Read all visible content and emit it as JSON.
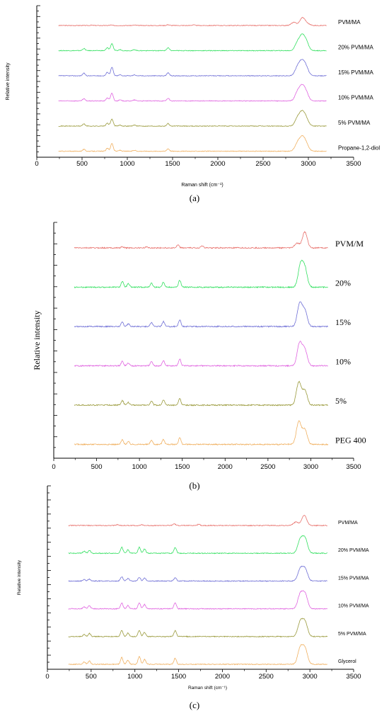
{
  "chart_data": [
    {
      "type": "line",
      "panel_label": "(a)",
      "xlabel": "Raman shift (cm⁻¹)",
      "ylabel": "Relative intensity",
      "xlim": [
        0,
        3500
      ],
      "x_ticks": [
        0,
        500,
        1000,
        1500,
        2000,
        2500,
        3000,
        3500
      ],
      "x_range": [
        240,
        3200
      ],
      "grid": false,
      "legend": "labels at right end of each trace",
      "series": [
        {
          "name": "PVM/MA",
          "color": "#e8716c",
          "peaks": [
            [
              2840,
              0.22
            ],
            [
              2935,
              0.55
            ],
            [
              2990,
              0.12
            ],
            [
              1450,
              0.06
            ],
            [
              1730,
              0.05
            ],
            [
              1080,
              0.03
            ],
            [
              820,
              0.03
            ],
            [
              600,
              0.02
            ]
          ]
        },
        {
          "name": "20% PVM/MA",
          "color": "#33e060",
          "peaks": [
            [
              2880,
              0.55
            ],
            [
              2930,
              0.9
            ],
            [
              2975,
              0.6
            ],
            [
              1450,
              0.2
            ],
            [
              830,
              0.5
            ],
            [
              780,
              0.2
            ],
            [
              520,
              0.15
            ],
            [
              1080,
              0.07
            ],
            [
              920,
              0.07
            ]
          ]
        },
        {
          "name": "15% PVM/MA",
          "color": "#6f6fd6",
          "peaks": [
            [
              2880,
              0.6
            ],
            [
              2930,
              0.9
            ],
            [
              2975,
              0.55
            ],
            [
              1450,
              0.2
            ],
            [
              830,
              0.6
            ],
            [
              780,
              0.25
            ],
            [
              520,
              0.18
            ],
            [
              1080,
              0.07
            ],
            [
              920,
              0.07
            ]
          ]
        },
        {
          "name": "10% PVM/MA",
          "color": "#e064e0",
          "peaks": [
            [
              2880,
              0.6
            ],
            [
              2930,
              0.9
            ],
            [
              2975,
              0.55
            ],
            [
              1450,
              0.18
            ],
            [
              830,
              0.55
            ],
            [
              780,
              0.22
            ],
            [
              520,
              0.15
            ],
            [
              1080,
              0.07
            ],
            [
              920,
              0.07
            ]
          ]
        },
        {
          "name": "5% PVM/MA",
          "color": "#9a9a3c",
          "peaks": [
            [
              2880,
              0.55
            ],
            [
              2930,
              0.85
            ],
            [
              2975,
              0.5
            ],
            [
              1450,
              0.18
            ],
            [
              830,
              0.5
            ],
            [
              780,
              0.2
            ],
            [
              520,
              0.15
            ],
            [
              1080,
              0.07
            ],
            [
              920,
              0.07
            ]
          ]
        },
        {
          "name": "Propane-1,2-diol",
          "color": "#f0b060",
          "peaks": [
            [
              2880,
              0.55
            ],
            [
              2930,
              0.85
            ],
            [
              2975,
              0.5
            ],
            [
              1450,
              0.18
            ],
            [
              830,
              0.55
            ],
            [
              780,
              0.2
            ],
            [
              520,
              0.13
            ],
            [
              1080,
              0.07
            ],
            [
              920,
              0.07
            ]
          ]
        }
      ]
    },
    {
      "type": "line",
      "panel_label": "(b)",
      "xlabel": "",
      "ylabel": "Relative intensity",
      "xlim": [
        0,
        3500
      ],
      "x_ticks": [
        0,
        500,
        1000,
        1500,
        2000,
        2500,
        3000,
        3500
      ],
      "x_range": [
        240,
        3200
      ],
      "grid": false,
      "legend": "labels at right end of each trace",
      "series": [
        {
          "name": "PVM/M",
          "color": "#e8716c",
          "peaks": [
            [
              2840,
              0.2
            ],
            [
              2930,
              0.7
            ],
            [
              1450,
              0.12
            ],
            [
              1730,
              0.1
            ],
            [
              800,
              0.05
            ],
            [
              1080,
              0.04
            ]
          ]
        },
        {
          "name": "20%",
          "color": "#33e060",
          "peaks": [
            [
              2880,
              0.95
            ],
            [
              2930,
              0.8
            ],
            [
              1470,
              0.3
            ],
            [
              1280,
              0.22
            ],
            [
              1140,
              0.18
            ],
            [
              800,
              0.25
            ],
            [
              870,
              0.15
            ]
          ]
        },
        {
          "name": "15%",
          "color": "#6f6fd6",
          "peaks": [
            [
              2870,
              1.0
            ],
            [
              2930,
              0.7
            ],
            [
              1470,
              0.3
            ],
            [
              1280,
              0.22
            ],
            [
              1140,
              0.18
            ],
            [
              800,
              0.2
            ],
            [
              870,
              0.12
            ]
          ]
        },
        {
          "name": "10%",
          "color": "#e064e0",
          "peaks": [
            [
              2870,
              1.0
            ],
            [
              2930,
              0.7
            ],
            [
              1470,
              0.3
            ],
            [
              1280,
              0.22
            ],
            [
              1140,
              0.18
            ],
            [
              800,
              0.2
            ],
            [
              870,
              0.12
            ]
          ]
        },
        {
          "name": "5%",
          "color": "#9a9a3c",
          "peaks": [
            [
              2860,
              1.0
            ],
            [
              2930,
              0.65
            ],
            [
              1470,
              0.3
            ],
            [
              1280,
              0.22
            ],
            [
              1140,
              0.18
            ],
            [
              800,
              0.2
            ],
            [
              870,
              0.12
            ]
          ]
        },
        {
          "name": "PEG 400",
          "color": "#f0b060",
          "peaks": [
            [
              2860,
              1.0
            ],
            [
              2930,
              0.65
            ],
            [
              1470,
              0.3
            ],
            [
              1280,
              0.22
            ],
            [
              1140,
              0.18
            ],
            [
              800,
              0.2
            ],
            [
              870,
              0.12
            ]
          ]
        }
      ]
    },
    {
      "type": "line",
      "panel_label": "(c)",
      "xlabel": "Raman shift (cm⁻¹)",
      "ylabel": "Relative intensity",
      "xlim": [
        0,
        3500
      ],
      "x_ticks": [
        0,
        500,
        1000,
        1500,
        2000,
        2500,
        3000,
        3500
      ],
      "x_range": [
        240,
        3200
      ],
      "grid": false,
      "legend": "labels at right end of each trace",
      "series": [
        {
          "name": "PVM/MA",
          "color": "#e8716c",
          "peaks": [
            [
              2840,
              0.2
            ],
            [
              2935,
              0.6
            ],
            [
              1450,
              0.1
            ],
            [
              1730,
              0.08
            ],
            [
              800,
              0.05
            ],
            [
              1080,
              0.04
            ]
          ]
        },
        {
          "name": "20% PVM/MA",
          "color": "#33e060",
          "peaks": [
            [
              2890,
              0.8
            ],
            [
              2945,
              0.85
            ],
            [
              1460,
              0.35
            ],
            [
              1050,
              0.35
            ],
            [
              1110,
              0.25
            ],
            [
              850,
              0.35
            ],
            [
              920,
              0.2
            ],
            [
              480,
              0.18
            ],
            [
              420,
              0.12
            ]
          ]
        },
        {
          "name": "15% PVM/MA",
          "color": "#6f6fd6",
          "peaks": [
            [
              2890,
              0.7
            ],
            [
              2945,
              0.7
            ],
            [
              1460,
              0.2
            ],
            [
              1050,
              0.22
            ],
            [
              1110,
              0.18
            ],
            [
              850,
              0.25
            ],
            [
              920,
              0.15
            ],
            [
              480,
              0.12
            ],
            [
              420,
              0.1
            ]
          ]
        },
        {
          "name": "10% PVM/MA",
          "color": "#e064e0",
          "peaks": [
            [
              2890,
              0.85
            ],
            [
              2945,
              0.85
            ],
            [
              1460,
              0.35
            ],
            [
              1050,
              0.35
            ],
            [
              1110,
              0.25
            ],
            [
              850,
              0.35
            ],
            [
              920,
              0.2
            ],
            [
              480,
              0.18
            ],
            [
              420,
              0.12
            ]
          ]
        },
        {
          "name": "5% PVM/MA",
          "color": "#9a9a3c",
          "peaks": [
            [
              2890,
              0.85
            ],
            [
              2945,
              0.85
            ],
            [
              1460,
              0.35
            ],
            [
              1050,
              0.35
            ],
            [
              1110,
              0.25
            ],
            [
              850,
              0.35
            ],
            [
              920,
              0.2
            ],
            [
              480,
              0.18
            ],
            [
              420,
              0.12
            ]
          ]
        },
        {
          "name": "Glycerol",
          "color": "#f0b060",
          "peaks": [
            [
              2890,
              0.95
            ],
            [
              2945,
              0.9
            ],
            [
              1460,
              0.35
            ],
            [
              1050,
              0.45
            ],
            [
              1110,
              0.3
            ],
            [
              850,
              0.4
            ],
            [
              920,
              0.25
            ],
            [
              480,
              0.2
            ],
            [
              420,
              0.15
            ]
          ]
        }
      ]
    }
  ]
}
